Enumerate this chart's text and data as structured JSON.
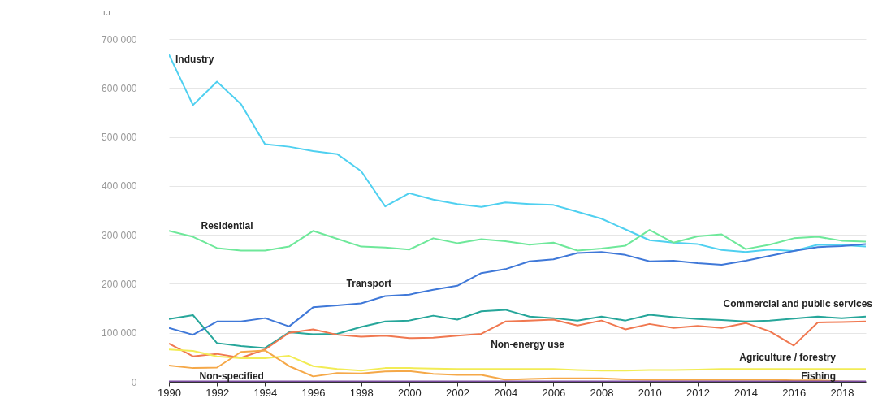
{
  "chart_data": {
    "type": "line",
    "ylabel": "TJ",
    "x": [
      1990,
      1991,
      1992,
      1993,
      1994,
      1995,
      1996,
      1997,
      1998,
      1999,
      2000,
      2001,
      2002,
      2003,
      2004,
      2005,
      2006,
      2007,
      2008,
      2009,
      2010,
      2011,
      2012,
      2013,
      2014,
      2015,
      2016,
      2017,
      2018,
      2019
    ],
    "series": [
      {
        "name": "Industry",
        "color": "#4fd0f0",
        "values": [
          668000,
          565000,
          613000,
          567000,
          485000,
          480000,
          471000,
          465000,
          430000,
          358000,
          385000,
          372000,
          363000,
          357000,
          366000,
          363000,
          361000,
          347000,
          333000,
          311000,
          289000,
          284000,
          281000,
          269000,
          265000,
          270000,
          267000,
          280000,
          279000,
          276000
        ]
      },
      {
        "name": "Residential",
        "color": "#6ee89a",
        "values": [
          308000,
          296000,
          273000,
          268000,
          268000,
          276000,
          308000,
          292000,
          276000,
          274000,
          270000,
          293000,
          283000,
          291000,
          287000,
          280000,
          284000,
          268000,
          272000,
          278000,
          310000,
          284000,
          297000,
          301000,
          271000,
          280000,
          293000,
          296000,
          288000,
          286000
        ]
      },
      {
        "name": "Transport",
        "color": "#3f78d8",
        "values": [
          110000,
          96000,
          123000,
          123000,
          130000,
          113000,
          152000,
          156000,
          160000,
          175000,
          178000,
          188000,
          196000,
          222000,
          230000,
          246000,
          250000,
          263000,
          265000,
          259000,
          246000,
          247000,
          242000,
          239000,
          247000,
          257000,
          267000,
          275000,
          277000,
          281000
        ]
      },
      {
        "name": "Commercial and public services",
        "color": "#26a69a",
        "values": [
          128000,
          136000,
          79000,
          73000,
          69000,
          101000,
          97000,
          98000,
          112000,
          123000,
          125000,
          135000,
          127000,
          144000,
          147000,
          133000,
          130000,
          125000,
          133000,
          125000,
          137000,
          132000,
          128000,
          126000,
          123000,
          125000,
          129000,
          133000,
          130000,
          133000
        ]
      },
      {
        "name": "Non-energy use",
        "color": "#f07850",
        "values": [
          78000,
          52000,
          57000,
          49000,
          66000,
          100000,
          107000,
          96000,
          92000,
          94000,
          89000,
          90000,
          94000,
          98000,
          123000,
          125000,
          127000,
          115000,
          125000,
          107000,
          118000,
          110000,
          114000,
          110000,
          120000,
          103000,
          74000,
          121000,
          122000,
          123000
        ]
      },
      {
        "name": "Agriculture / forestry",
        "color": "#f2ec55",
        "values": [
          66000,
          63000,
          52000,
          48000,
          48000,
          53000,
          32000,
          26000,
          23000,
          28000,
          28000,
          27000,
          26000,
          26000,
          26000,
          26000,
          26000,
          24000,
          23000,
          23000,
          24000,
          24000,
          25000,
          26000,
          26000,
          26000,
          26000,
          26000,
          26000,
          26000
        ]
      },
      {
        "name": "Non-specified",
        "color": "#f5a848",
        "values": [
          33000,
          28000,
          29000,
          61000,
          64000,
          32000,
          11000,
          18000,
          17000,
          21000,
          22000,
          16000,
          14000,
          14000,
          4000,
          6000,
          7000,
          7000,
          7000,
          5000,
          4000,
          4000,
          4000,
          4000,
          4000,
          4000,
          3000,
          3000,
          1000,
          0
        ]
      },
      {
        "name": "Fishing",
        "color": "#7a4ba0",
        "values": [
          1000,
          1000,
          1000,
          1000,
          1000,
          1000,
          1000,
          1000,
          1000,
          1000,
          1000,
          1000,
          1000,
          1000,
          1000,
          1000,
          1000,
          1000,
          1000,
          1000,
          1000,
          1000,
          1000,
          1000,
          1000,
          1000,
          1000,
          1000,
          1000,
          1000
        ]
      }
    ],
    "xlim": [
      1990,
      2019
    ],
    "xticks": [
      1990,
      1992,
      1994,
      1996,
      1998,
      2000,
      2002,
      2004,
      2006,
      2008,
      2010,
      2012,
      2014,
      2016,
      2018
    ],
    "ylim": [
      0,
      700000
    ],
    "yticks": [
      {
        "value": 0,
        "label": "0"
      },
      {
        "value": 100000,
        "label": "100 000"
      },
      {
        "value": 200000,
        "label": "200 000"
      },
      {
        "value": 300000,
        "label": "300 000"
      },
      {
        "value": 400000,
        "label": "400 000"
      },
      {
        "value": 500000,
        "label": "500 000"
      },
      {
        "value": 600000,
        "label": "600 000"
      },
      {
        "value": 700000,
        "label": "700 000"
      }
    ],
    "grid": "y",
    "line_style": "solid",
    "marker": "none"
  }
}
